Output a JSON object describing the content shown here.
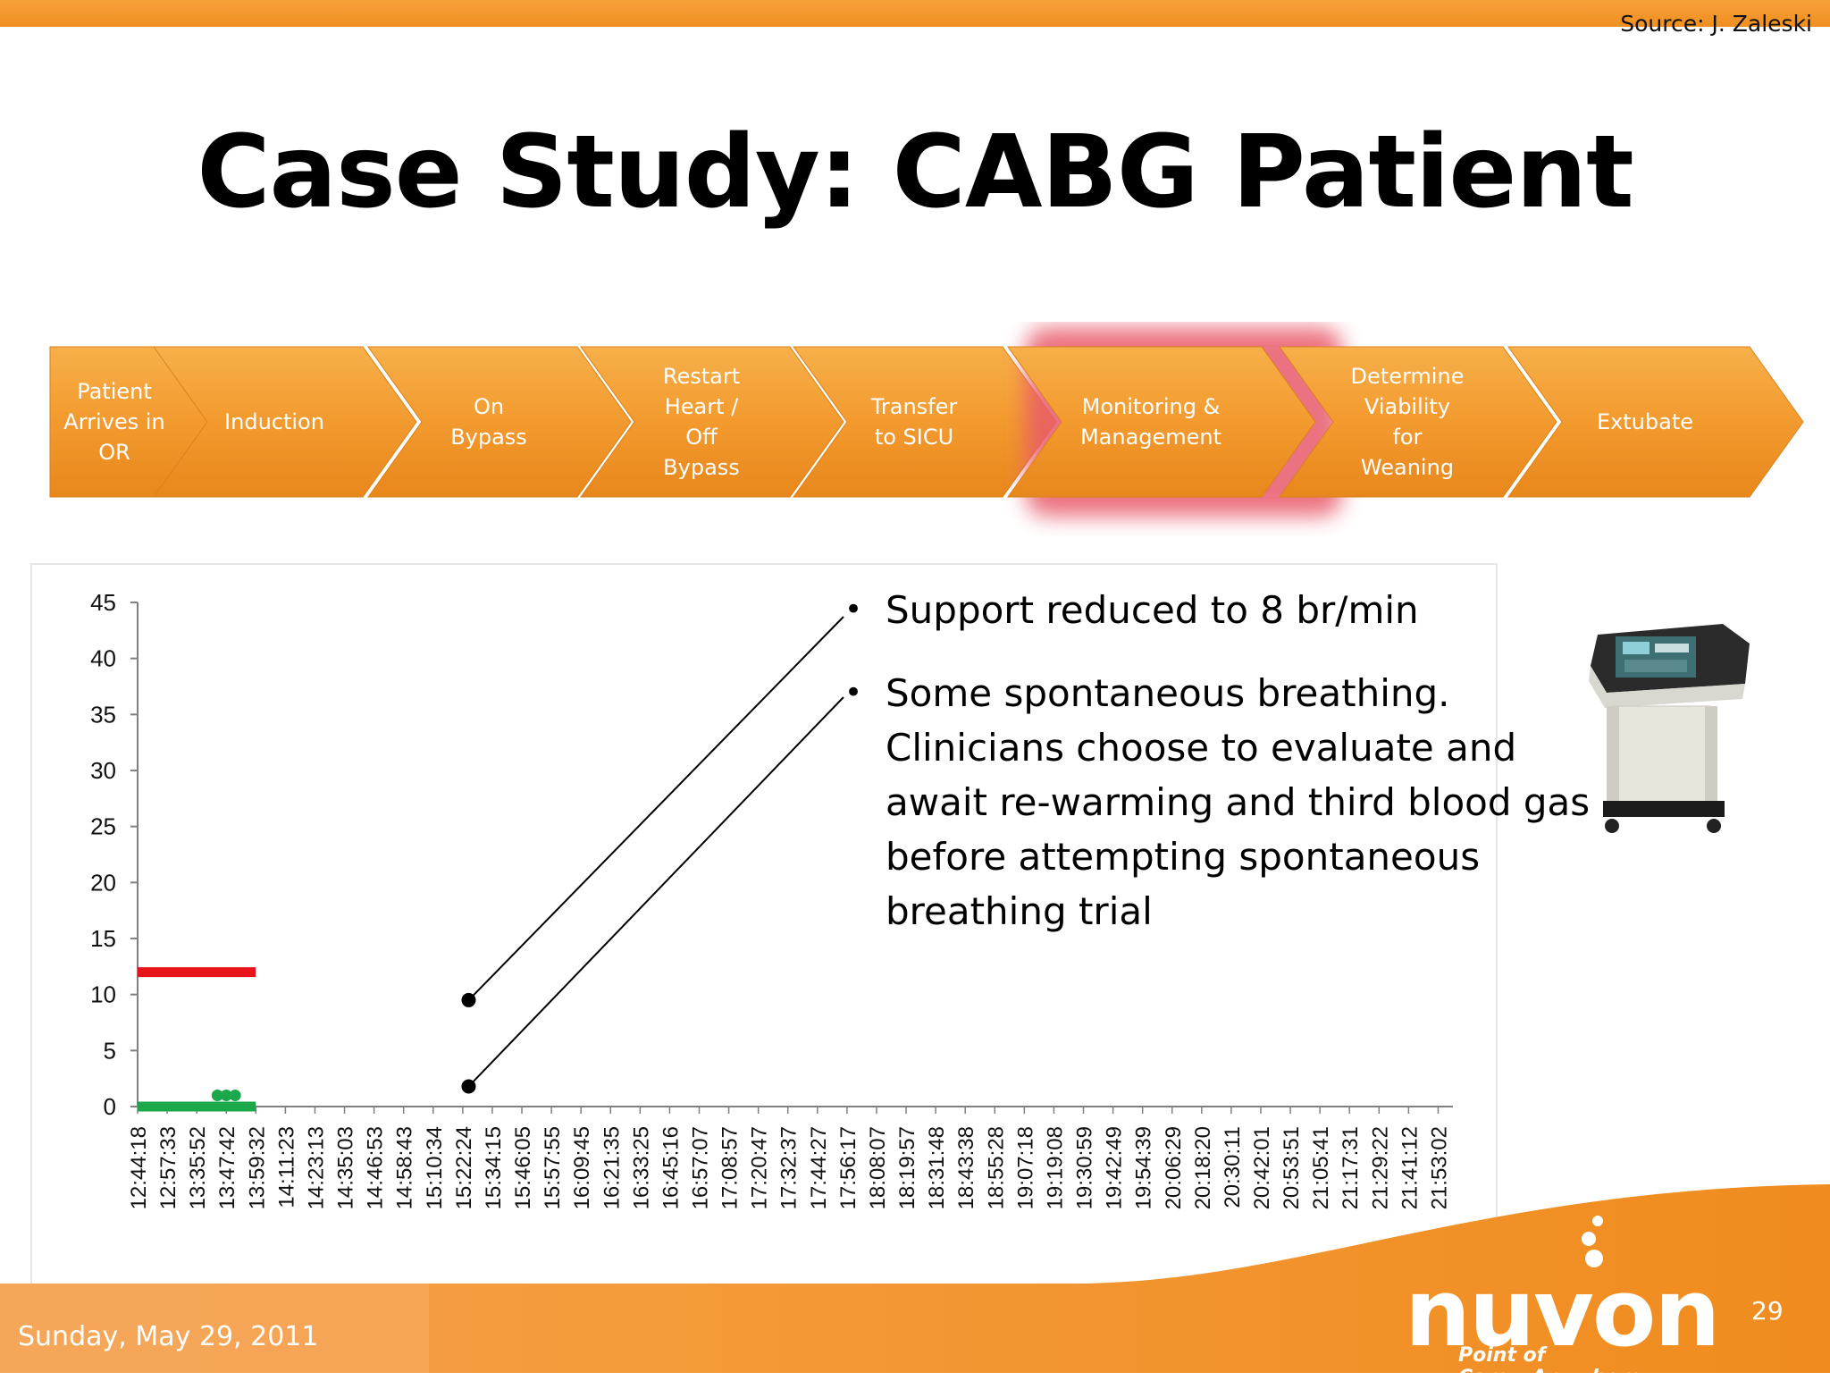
{
  "slide": {
    "source": "Source: J. Zaleski",
    "title": "Case Study: CABG Patient",
    "date": "Sunday, May 29, 2011",
    "page_number": "29"
  },
  "process_steps": [
    {
      "label": "Patient\nArrives in\nOR",
      "highlighted": false
    },
    {
      "label": "Induction",
      "highlighted": false
    },
    {
      "label": "On\nBypass",
      "highlighted": false
    },
    {
      "label": "Restart\nHeart /\nOff\nBypass",
      "highlighted": false
    },
    {
      "label": "Transfer\nto SICU",
      "highlighted": false
    },
    {
      "label": "Monitoring &\nManagement",
      "highlighted": true
    },
    {
      "label": "Determine\nViability\nfor\nWeaning",
      "highlighted": false
    },
    {
      "label": "Extubate",
      "highlighted": false
    }
  ],
  "bullets": [
    "Support reduced to 8 br/min",
    "Some spontaneous breathing. Clinicians choose to evaluate and await re-warming and third blood gas before attempting spontaneous breathing trial"
  ],
  "logo": {
    "text": "nuvon",
    "tagline": "Point of Care...Anywhere"
  },
  "colors": {
    "orange": "#f39a2e",
    "red_series": "#e8141c",
    "green_series": "#1aa84a",
    "highlight_glow": "#e85a6a"
  },
  "icons": [
    "ventilator-device-icon"
  ],
  "chart_data": {
    "type": "line",
    "ylim": [
      0,
      45
    ],
    "yticks": [
      0,
      5,
      10,
      15,
      20,
      25,
      30,
      35,
      40,
      45
    ],
    "categories": [
      "12:44:18",
      "12:57:33",
      "13:35:52",
      "13:47:42",
      "13:59:32",
      "14:11:23",
      "14:23:13",
      "14:35:03",
      "14:46:53",
      "14:58:43",
      "15:10:34",
      "15:22:24",
      "15:34:15",
      "15:46:05",
      "15:57:55",
      "16:09:45",
      "16:21:35",
      "16:33:25",
      "16:45:16",
      "16:57:07",
      "17:08:57",
      "17:20:47",
      "17:32:37",
      "17:44:27",
      "17:56:17",
      "18:08:07",
      "18:19:57",
      "18:31:48",
      "18:43:38",
      "18:55:28",
      "19:07:18",
      "19:19:08",
      "19:30:59",
      "19:42:49",
      "19:54:39",
      "20:06:29",
      "20:18:20",
      "20:30:11",
      "20:42:01",
      "20:53:51",
      "21:05:41",
      "21:17:31",
      "21:29:22",
      "21:41:12",
      "21:53:02"
    ],
    "series": [
      {
        "values_index_range": [
          0,
          4
        ],
        "value": 12,
        "color": "#e8141c"
      },
      {
        "values_index_range": [
          0,
          4
        ],
        "value": 0,
        "color": "#1aa84a",
        "markers": [
          {
            "index": 2.7,
            "value": 1
          },
          {
            "index": 3.0,
            "value": 1
          },
          {
            "index": 3.3,
            "value": 1
          }
        ]
      }
    ],
    "annotations": [
      {
        "type": "pointer",
        "from": {
          "index": 11.2,
          "value": 9.5
        },
        "bullet": 0
      },
      {
        "type": "pointer",
        "from": {
          "index": 11.2,
          "value": 1.8
        },
        "bullet": 1
      }
    ]
  }
}
